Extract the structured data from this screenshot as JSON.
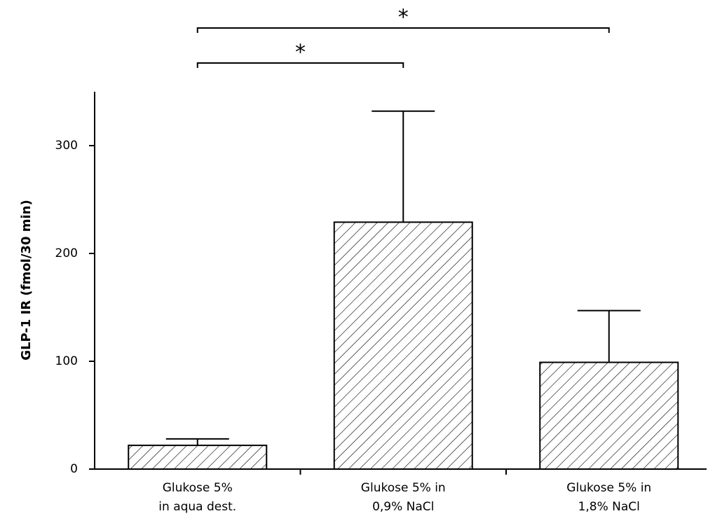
{
  "chart_data": {
    "type": "bar",
    "y_label": "GLP-1 IR (fmol/30 min)",
    "categories": [
      [
        "Glukose 5%",
        "in aqua dest."
      ],
      [
        "Glukose 5% in",
        "0,9% NaCl"
      ],
      [
        "Glukose 5% in",
        "1,8% NaCl"
      ]
    ],
    "values": [
      22,
      229,
      99
    ],
    "errors": [
      6,
      103,
      48
    ],
    "color": "#000000",
    "ylim": [
      0,
      350
    ],
    "yticks": [
      0,
      100,
      200,
      300
    ],
    "significance": [
      {
        "label": "*",
        "between": [
          0,
          2
        ]
      },
      {
        "label": "*",
        "between": [
          0,
          1
        ]
      }
    ]
  }
}
